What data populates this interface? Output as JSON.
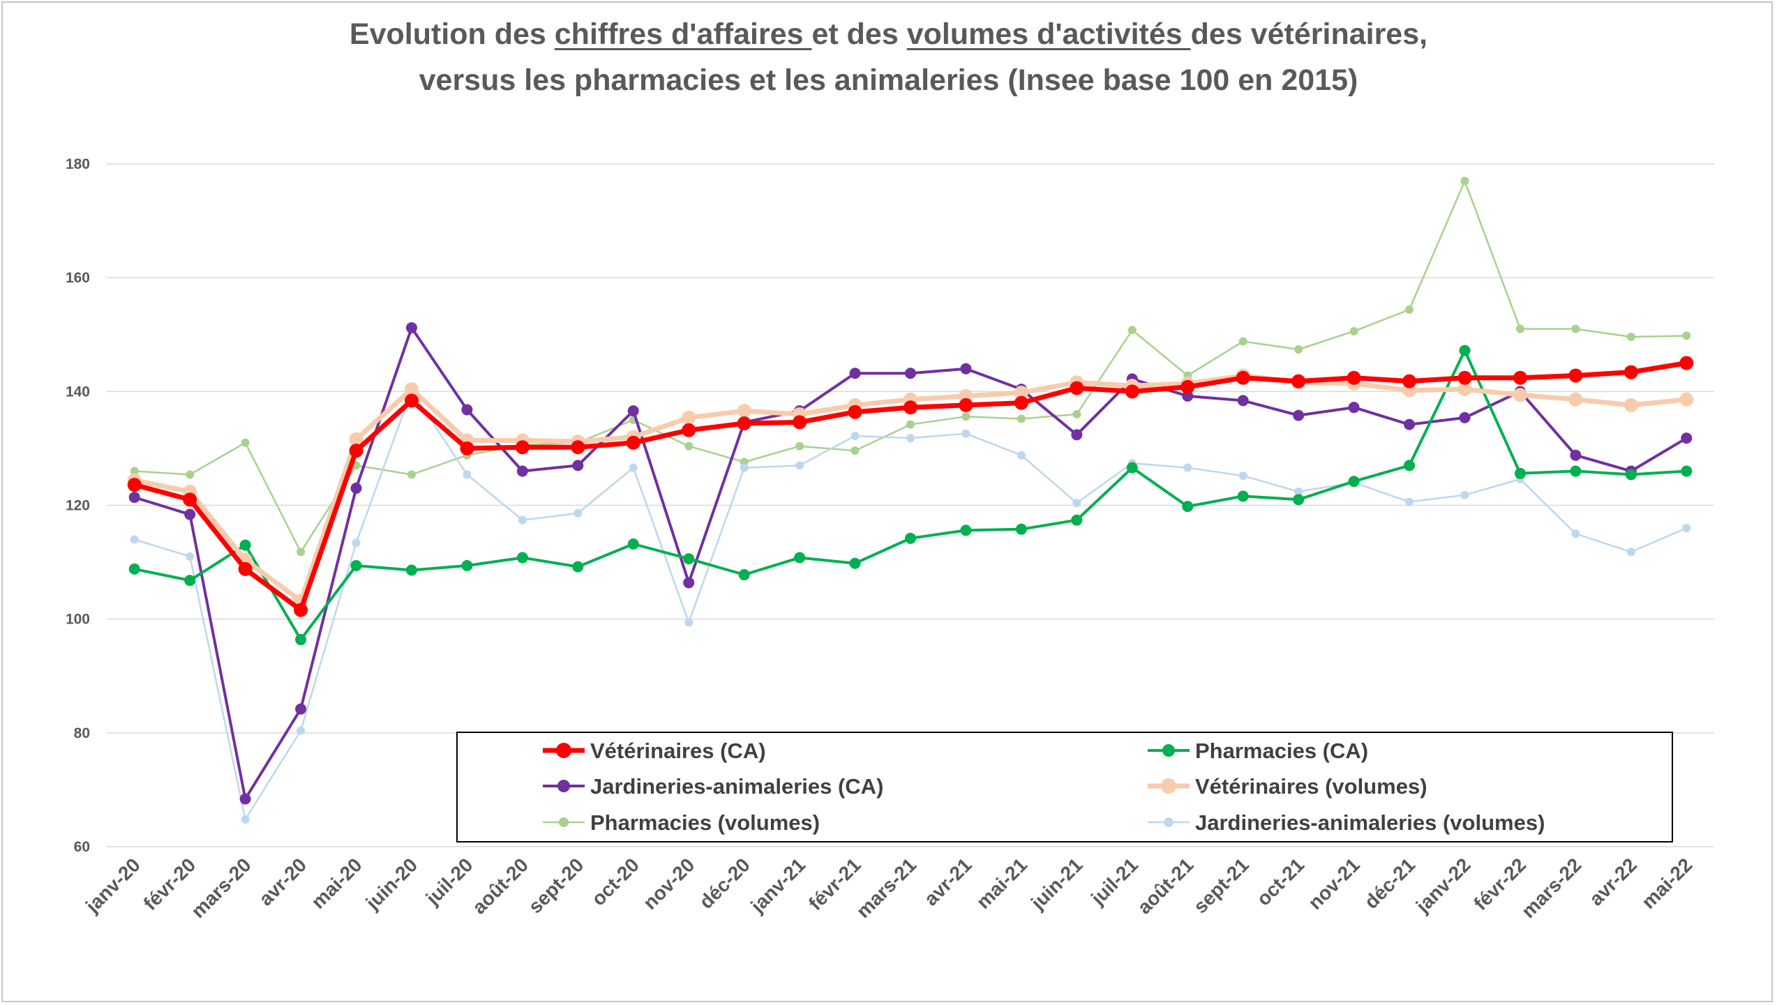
{
  "chart_data": {
    "type": "line",
    "title_parts": [
      {
        "text": "Evolution des ",
        "underline": false
      },
      {
        "text": "chiffres d'affaires ",
        "underline": true
      },
      {
        "text": "et des ",
        "underline": false
      },
      {
        "text": "volumes d'activités ",
        "underline": true
      },
      {
        "text": "des vétérinaires,",
        "underline": false
      }
    ],
    "title_line2": "versus les pharmacies et les animaleries (Insee base 100 en 2015)",
    "xlabel": "",
    "ylabel": "",
    "ylim": [
      60,
      180
    ],
    "yticks": [
      60,
      80,
      100,
      120,
      140,
      160,
      180
    ],
    "grid": true,
    "legend_position": "bottom-right",
    "categories": [
      "janv-20",
      "févr-20",
      "mars-20",
      "avr-20",
      "mai-20",
      "juin-20",
      "juil-20",
      "août-20",
      "sept-20",
      "oct-20",
      "nov-20",
      "déc-20",
      "janv-21",
      "févr-21",
      "mars-21",
      "avr-21",
      "mai-21",
      "juin-21",
      "juil-21",
      "août-21",
      "sept-21",
      "oct-21",
      "nov-21",
      "déc-21",
      "janv-22",
      "févr-22",
      "mars-22",
      "avr-22",
      "mai-22"
    ],
    "series": [
      {
        "name": "Pharmacies (volumes)",
        "color": "#a9d18e",
        "style": "thin",
        "values": [
          126,
          125.4,
          131,
          111.8,
          127,
          125.4,
          128.8,
          130.6,
          131,
          135,
          130.4,
          127.6,
          130.4,
          129.6,
          134.2,
          135.6,
          135.2,
          136,
          150.8,
          142.8,
          148.8,
          147.4,
          150.6,
          154.4,
          177,
          151,
          151,
          149.6,
          149.8
        ]
      },
      {
        "name": "Jardineries-animaleries (volumes)",
        "color": "#bdd7ee",
        "style": "thin",
        "values": [
          114,
          111,
          64.8,
          80.4,
          113.4,
          140.2,
          125.4,
          117.4,
          118.6,
          126.6,
          99.4,
          126.6,
          127,
          132.2,
          131.8,
          132.6,
          128.8,
          120.4,
          127.4,
          126.6,
          125.2,
          122.4,
          124,
          120.6,
          121.8,
          124.6,
          115,
          111.8,
          116
        ]
      },
      {
        "name": "Jardineries-animaleries (CA)",
        "color": "#7030a0",
        "style": "medium",
        "values": [
          121.4,
          118.4,
          68.4,
          84.2,
          123,
          151.2,
          136.8,
          126,
          127,
          136.6,
          106.4,
          134.6,
          136.6,
          143.2,
          143.2,
          144,
          140.4,
          132.4,
          142.2,
          139.2,
          138.4,
          135.8,
          137.2,
          134.2,
          135.4,
          140,
          128.8,
          126,
          131.8
        ]
      },
      {
        "name": "Pharmacies (CA)",
        "color": "#00b050",
        "style": "medium",
        "values": [
          108.8,
          106.8,
          113,
          96.4,
          109.4,
          108.6,
          109.4,
          110.8,
          109.2,
          113.2,
          110.6,
          107.8,
          110.8,
          109.8,
          114.2,
          115.6,
          115.8,
          117.4,
          126.6,
          119.8,
          121.6,
          121,
          124.2,
          127,
          147.2,
          125.6,
          126,
          125.4,
          126
        ]
      },
      {
        "name": "Vétérinaires (volumes)",
        "color": "#f8cbad",
        "style": "thick",
        "values": [
          124.4,
          122.4,
          110.4,
          103.2,
          131.6,
          140.4,
          131.4,
          131.4,
          131.2,
          132,
          135.4,
          136.6,
          136,
          137.6,
          138.6,
          139.2,
          139.8,
          141.6,
          141,
          141.4,
          142.8,
          141.6,
          141.4,
          140.2,
          140.4,
          139.4,
          138.6,
          137.6,
          138.6
        ]
      },
      {
        "name": "Vétérinaires (CA)",
        "color": "#ff0000",
        "style": "thick",
        "values": [
          123.6,
          121,
          108.8,
          101.6,
          129.6,
          138.4,
          130,
          130.2,
          130.2,
          131,
          133.2,
          134.4,
          134.6,
          136.4,
          137.2,
          137.6,
          138,
          140.6,
          140,
          140.8,
          142.4,
          141.8,
          142.4,
          141.8,
          142.4,
          142.4,
          142.8,
          143.4,
          145
        ]
      }
    ],
    "legend_entries": [
      {
        "name": "Vétérinaires (CA)",
        "color": "#ff0000",
        "style": "thick",
        "column": 0,
        "row": 0
      },
      {
        "name": "Pharmacies (CA)",
        "color": "#00b050",
        "style": "medium",
        "column": 1,
        "row": 0
      },
      {
        "name": "Jardineries-animaleries (CA)",
        "color": "#7030a0",
        "style": "medium",
        "column": 0,
        "row": 1
      },
      {
        "name": "Vétérinaires (volumes)",
        "color": "#f8cbad",
        "style": "thick",
        "column": 1,
        "row": 1
      },
      {
        "name": "Pharmacies (volumes)",
        "color": "#a9d18e",
        "style": "thin",
        "column": 0,
        "row": 2
      },
      {
        "name": "Jardineries-animaleries (volumes)",
        "color": "#bdd7ee",
        "style": "thin",
        "column": 1,
        "row": 2
      }
    ]
  }
}
